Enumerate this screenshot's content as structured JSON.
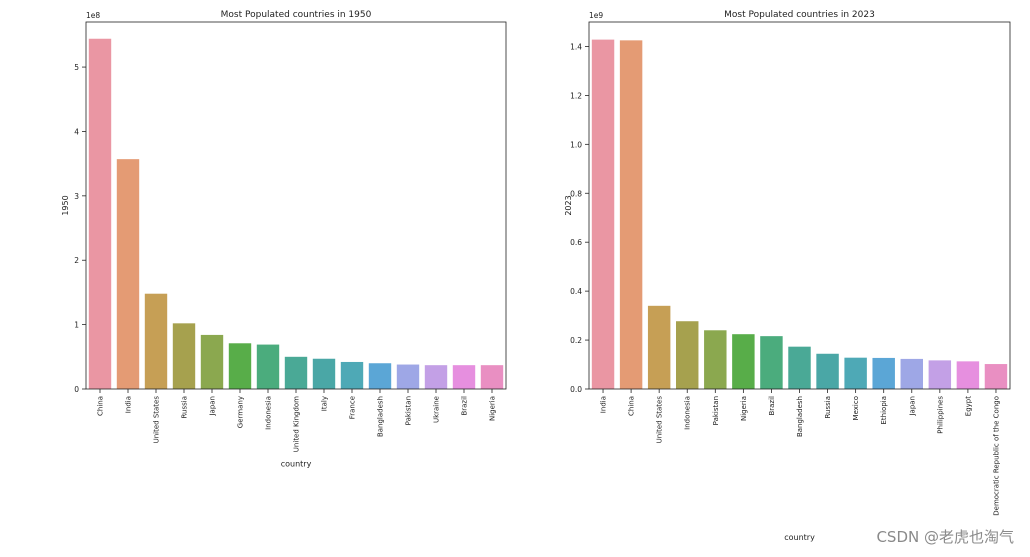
{
  "watermark": "CSDN @老虎也淘气",
  "chart_data": [
    {
      "type": "bar",
      "title": "Most Populated countries in 1950",
      "xlabel": "country",
      "ylabel": "1950",
      "offset_text": "1e8",
      "ylim": [
        0,
        5.7
      ],
      "yticks": [
        0,
        1,
        2,
        3,
        4,
        5
      ],
      "grid": false,
      "categories": [
        "China",
        "India",
        "United States",
        "Russia",
        "Japan",
        "Germany",
        "Indonesia",
        "United Kingdom",
        "Italy",
        "France",
        "Bangladesh",
        "Pakistan",
        "Ukraine",
        "Brazil",
        "Nigeria"
      ],
      "values": [
        5.44,
        3.57,
        1.48,
        1.02,
        0.84,
        0.71,
        0.69,
        0.5,
        0.47,
        0.42,
        0.4,
        0.38,
        0.37,
        0.37,
        0.37
      ],
      "colors": [
        "#ea96a3",
        "#e49b74",
        "#c69f55",
        "#a6a14e",
        "#8ba84f",
        "#58ad49",
        "#4bac7d",
        "#4aa996",
        "#4aa7a6",
        "#4ea9b6",
        "#5ba6d6",
        "#9ea7e6",
        "#c3a0e6",
        "#e68fdf",
        "#e98fc2"
      ]
    },
    {
      "type": "bar",
      "title": "Most Populated countries in 2023",
      "xlabel": "country",
      "ylabel": "2023",
      "offset_text": "1e9",
      "ylim": [
        0,
        1.5
      ],
      "yticks": [
        0.0,
        0.2,
        0.4,
        0.6,
        0.8,
        1.0,
        1.2,
        1.4
      ],
      "grid": false,
      "categories": [
        "India",
        "China",
        "United States",
        "Indonesia",
        "Pakistan",
        "Nigeria",
        "Brazil",
        "Bangladesh",
        "Russia",
        "Mexico",
        "Ethiopia",
        "Japan",
        "Philippines",
        "Egypt",
        "Democratic Republic of the Congo"
      ],
      "values": [
        1.428,
        1.425,
        0.34,
        0.277,
        0.24,
        0.224,
        0.216,
        0.173,
        0.144,
        0.128,
        0.127,
        0.123,
        0.117,
        0.113,
        0.102
      ],
      "colors": [
        "#ea96a3",
        "#e49b74",
        "#c69f55",
        "#a6a14e",
        "#8ba84f",
        "#58ad49",
        "#4bac7d",
        "#4aa996",
        "#4aa7a6",
        "#4ea9b6",
        "#5ba6d6",
        "#9ea7e6",
        "#c3a0e6",
        "#e68fdf",
        "#e98fc2"
      ]
    }
  ]
}
